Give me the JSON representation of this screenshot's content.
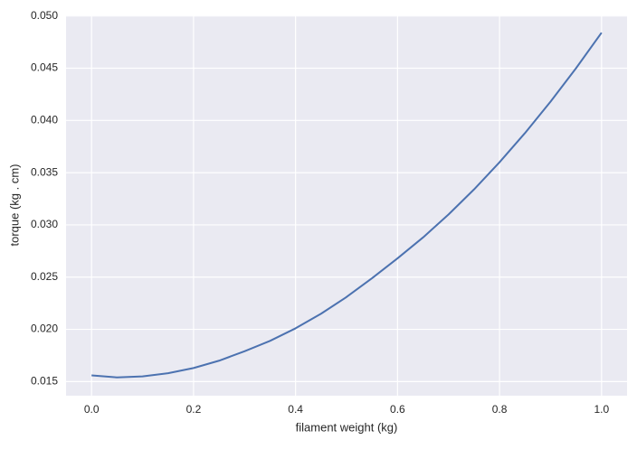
{
  "chart_data": {
    "type": "line",
    "x_label": "filament weight (kg)",
    "y_label": "torque (kg . cm)",
    "x": [
      0,
      0.05,
      0.1,
      0.15,
      0.2,
      0.25,
      0.3,
      0.35,
      0.4,
      0.45,
      0.5,
      0.55,
      0.6,
      0.65,
      0.7,
      0.75,
      0.8,
      0.85,
      0.9,
      0.95,
      1.0
    ],
    "series": [
      {
        "name": "torque",
        "color": "#4c72b0",
        "values": [
          0.0156,
          0.0154,
          0.0155,
          0.0158,
          0.0163,
          0.017,
          0.0179,
          0.0189,
          0.0201,
          0.0215,
          0.0231,
          0.0249,
          0.0268,
          0.0288,
          0.031,
          0.0334,
          0.036,
          0.0388,
          0.0418,
          0.045,
          0.0484
        ]
      }
    ],
    "xlim": [
      -0.05,
      1.05
    ],
    "ylim": [
      0.01365,
      0.05006
    ],
    "xticks": [
      {
        "value": 0,
        "label": "0.0"
      },
      0.2,
      0.4,
      0.6,
      0.8,
      {
        "value": 1,
        "label": "1.0"
      }
    ],
    "yticks": [
      {
        "value": 0.015,
        "label": "0.015"
      },
      {
        "value": 0.02,
        "label": "0.020"
      },
      {
        "value": 0.025,
        "label": "0.025"
      },
      {
        "value": 0.03,
        "label": "0.030"
      },
      {
        "value": 0.035,
        "label": "0.035"
      },
      {
        "value": 0.04,
        "label": "0.040"
      },
      {
        "value": 0.045,
        "label": "0.045"
      },
      {
        "value": 0.05,
        "label": "0.050"
      }
    ],
    "grid": true
  }
}
